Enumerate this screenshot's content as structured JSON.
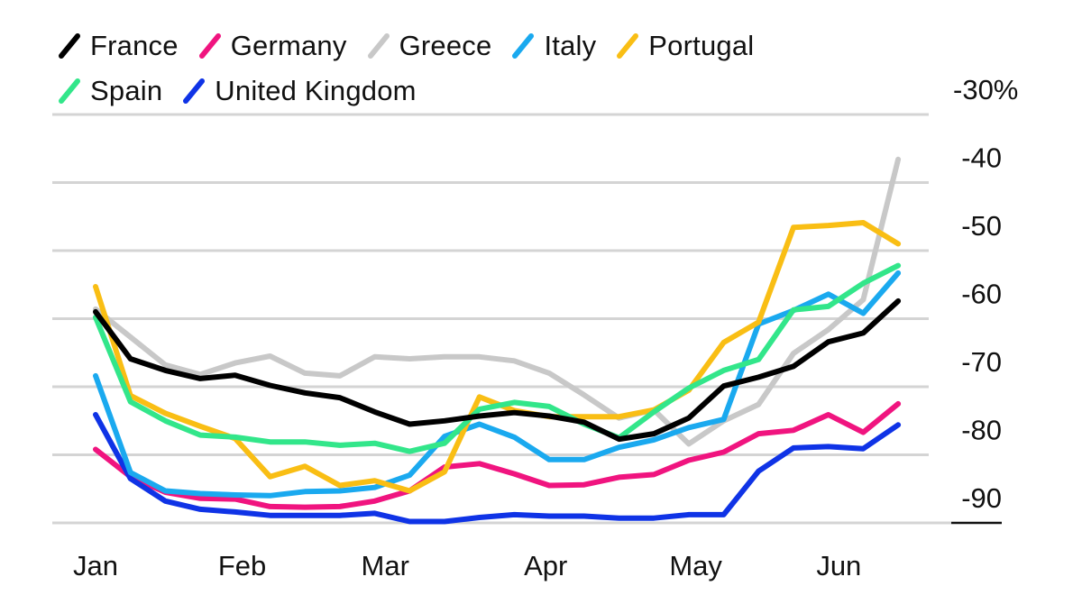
{
  "chart_data": {
    "type": "line",
    "title": "",
    "xlabel": "",
    "ylabel": "",
    "y_unit_suffix": "%",
    "ylim": [
      -90,
      -30
    ],
    "yticks": [
      -30,
      -40,
      -50,
      -60,
      -70,
      -80,
      -90
    ],
    "ytick_labels": [
      "-30%",
      "-40",
      "-50",
      "-60",
      "-70",
      "-80",
      "-90"
    ],
    "x_tick_labels": [
      "Jan",
      "Feb",
      "Mar",
      "Apr",
      "May",
      "Jun"
    ],
    "x_tick_positions": [
      0,
      4.2,
      8.3,
      12.9,
      17.2,
      21.3
    ],
    "x_count": 24,
    "grid": true,
    "legend_position": "top-left",
    "series": [
      {
        "name": "France",
        "color": "#000000",
        "values": [
          -59,
          -65.9,
          -67.6,
          -68.8,
          -68.3,
          -69.8,
          -70.9,
          -71.6,
          -73.7,
          -75.5,
          -75.0,
          -74.3,
          -73.8,
          -74.3,
          -75.2,
          -77.7,
          -76.9,
          -74.6,
          -69.9,
          -68.6,
          -67.0,
          -63.4,
          -62.1,
          -57.4
        ]
      },
      {
        "name": "Germany",
        "color": "#f0147f",
        "values": [
          -79.2,
          -83.2,
          -85.5,
          -86.4,
          -86.5,
          -87.6,
          -87.7,
          -87.6,
          -86.8,
          -85.3,
          -81.8,
          -81.3,
          -82.8,
          -84.5,
          -84.4,
          -83.3,
          -82.9,
          -80.8,
          -79.6,
          -76.9,
          -76.4,
          -74.1,
          -76.7,
          -72.5
        ]
      },
      {
        "name": "Greece",
        "color": "#c8c8c8",
        "values": [
          -58.6,
          -62.7,
          -66.8,
          -68.2,
          -66.5,
          -65.5,
          -68.0,
          -68.4,
          -65.6,
          -65.9,
          -65.6,
          -65.6,
          -66.2,
          -68.0,
          -71.2,
          -74.6,
          -73.4,
          -78.4,
          -75.0,
          -72.6,
          -65.1,
          -61.6,
          -57.2,
          -36.6
        ]
      },
      {
        "name": "Italy",
        "color": "#1aa9ef",
        "values": [
          -68.4,
          -82.6,
          -85.3,
          -85.7,
          -85.9,
          -86.0,
          -85.4,
          -85.3,
          -84.8,
          -83.0,
          -77.3,
          -75.5,
          -77.4,
          -80.7,
          -80.7,
          -78.9,
          -77.8,
          -76.0,
          -74.8,
          -60.8,
          -58.8,
          -56.4,
          -59.2,
          -53.3
        ]
      },
      {
        "name": "Portugal",
        "color": "#f9be14",
        "values": [
          -55.3,
          -71.3,
          -73.9,
          -75.8,
          -77.6,
          -83.2,
          -81.7,
          -84.5,
          -83.8,
          -85.3,
          -82.5,
          -71.5,
          -73.5,
          -74.4,
          -74.4,
          -74.4,
          -73.4,
          -70.5,
          -63.5,
          -60.5,
          -46.6,
          -46.3,
          -45.9,
          -49.0
        ]
      },
      {
        "name": "Spain",
        "color": "#32e68a",
        "values": [
          -59.8,
          -72.2,
          -75.0,
          -77.1,
          -77.4,
          -78.1,
          -78.1,
          -78.6,
          -78.3,
          -79.5,
          -78.3,
          -73.3,
          -72.3,
          -72.9,
          -75.5,
          -77.5,
          -73.7,
          -70.2,
          -67.6,
          -66.0,
          -58.7,
          -58.2,
          -54.8,
          -52.2
        ]
      },
      {
        "name": "United Kingdom",
        "color": "#0f33e6",
        "values": [
          -74.1,
          -83.5,
          -86.8,
          -88.0,
          -88.4,
          -88.9,
          -88.9,
          -88.9,
          -88.6,
          -89.8,
          -89.8,
          -89.2,
          -88.8,
          -89.0,
          -89.0,
          -89.3,
          -89.3,
          -88.8,
          -88.8,
          -82.4,
          -79.0,
          -78.8,
          -79.1,
          -75.6
        ]
      }
    ]
  }
}
